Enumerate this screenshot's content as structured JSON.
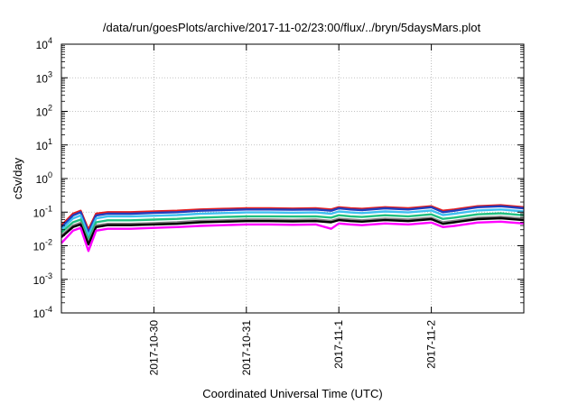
{
  "chart_data": {
    "type": "line",
    "title": "/data/run/goesPlots/archive/2017-11-02/23:00/flux/../bryn/5daysMars.plot",
    "xlabel": "Coordinated Universal Time (UTC)",
    "ylabel": "cSv/day",
    "y_scale": "log",
    "ylim": [
      0.0001,
      10000
    ],
    "y_ticks": [
      {
        "value": 0.0001,
        "base": "10",
        "exp": "-4"
      },
      {
        "value": 0.001,
        "base": "10",
        "exp": "-3"
      },
      {
        "value": 0.01,
        "base": "10",
        "exp": "-2"
      },
      {
        "value": 0.1,
        "base": "10",
        "exp": "-1"
      },
      {
        "value": 1,
        "base": "10",
        "exp": "0"
      },
      {
        "value": 10,
        "base": "10",
        "exp": "1"
      },
      {
        "value": 100,
        "base": "10",
        "exp": "2"
      },
      {
        "value": 1000,
        "base": "10",
        "exp": "3"
      },
      {
        "value": 10000,
        "base": "10",
        "exp": "4"
      }
    ],
    "xlim": [
      "2017-10-29 00:00",
      "2017-11-03 00:00"
    ],
    "x_ticks": [
      "2017-10-30",
      "2017-10-31",
      "2017-11-1",
      "2017-11-2"
    ],
    "grid": true,
    "x": [
      "2017-10-29 00:00",
      "2017-10-29 03:00",
      "2017-10-29 05:00",
      "2017-10-29 07:00",
      "2017-10-29 09:00",
      "2017-10-29 12:00",
      "2017-10-29 18:00",
      "2017-10-30 00:00",
      "2017-10-30 06:00",
      "2017-10-30 12:00",
      "2017-10-30 18:00",
      "2017-10-31 00:00",
      "2017-10-31 06:00",
      "2017-10-31 12:00",
      "2017-10-31 18:00",
      "2017-10-31 22:00",
      "2017-11-01 00:00",
      "2017-11-01 03:00",
      "2017-11-01 06:00",
      "2017-11-01 12:00",
      "2017-11-01 18:00",
      "2017-11-02 00:00",
      "2017-11-02 03:00",
      "2017-11-02 06:00",
      "2017-11-02 12:00",
      "2017-11-02 18:00",
      "2017-11-03 00:00"
    ],
    "series": [
      {
        "color": "#e41a1c",
        "values": [
          0.04,
          0.09,
          0.11,
          0.03,
          0.09,
          0.1,
          0.1,
          0.105,
          0.11,
          0.12,
          0.125,
          0.13,
          0.13,
          0.128,
          0.13,
          0.12,
          0.14,
          0.13,
          0.125,
          0.14,
          0.13,
          0.15,
          0.11,
          0.12,
          0.15,
          0.16,
          0.14
        ]
      },
      {
        "color": "#1f3fbf",
        "values": [
          0.035,
          0.08,
          0.1,
          0.025,
          0.08,
          0.09,
          0.09,
          0.095,
          0.1,
          0.11,
          0.115,
          0.12,
          0.12,
          0.118,
          0.12,
          0.11,
          0.13,
          0.12,
          0.115,
          0.13,
          0.12,
          0.14,
          0.1,
          0.11,
          0.14,
          0.15,
          0.13
        ]
      },
      {
        "color": "#40c0f0",
        "values": [
          0.03,
          0.065,
          0.08,
          0.02,
          0.065,
          0.075,
          0.075,
          0.078,
          0.082,
          0.09,
          0.094,
          0.098,
          0.098,
          0.096,
          0.098,
          0.09,
          0.105,
          0.098,
          0.094,
          0.105,
          0.098,
          0.112,
          0.082,
          0.09,
          0.112,
          0.12,
          0.105
        ]
      },
      {
        "color": "#20c080",
        "values": [
          0.025,
          0.05,
          0.06,
          0.015,
          0.05,
          0.057,
          0.057,
          0.06,
          0.063,
          0.069,
          0.072,
          0.075,
          0.075,
          0.074,
          0.075,
          0.069,
          0.081,
          0.075,
          0.072,
          0.081,
          0.075,
          0.086,
          0.063,
          0.069,
          0.086,
          0.092,
          0.081
        ]
      },
      {
        "color": "#808080",
        "values": [
          0.02,
          0.04,
          0.048,
          0.012,
          0.04,
          0.045,
          0.045,
          0.047,
          0.05,
          0.055,
          0.057,
          0.06,
          0.06,
          0.059,
          0.06,
          0.055,
          0.064,
          0.06,
          0.057,
          0.064,
          0.06,
          0.068,
          0.05,
          0.055,
          0.068,
          0.073,
          0.064
        ]
      },
      {
        "color": "#000000",
        "values": [
          0.018,
          0.036,
          0.043,
          0.011,
          0.036,
          0.041,
          0.041,
          0.043,
          0.045,
          0.05,
          0.052,
          0.054,
          0.054,
          0.053,
          0.054,
          0.05,
          0.058,
          0.054,
          0.052,
          0.058,
          0.054,
          0.062,
          0.045,
          0.05,
          0.062,
          0.066,
          0.058
        ]
      },
      {
        "color": "#ff00ff",
        "values": [
          0.012,
          0.028,
          0.034,
          0.007,
          0.028,
          0.032,
          0.032,
          0.034,
          0.036,
          0.039,
          0.041,
          0.043,
          0.043,
          0.042,
          0.043,
          0.032,
          0.046,
          0.043,
          0.041,
          0.046,
          0.043,
          0.049,
          0.036,
          0.039,
          0.049,
          0.052,
          0.046
        ]
      }
    ]
  }
}
